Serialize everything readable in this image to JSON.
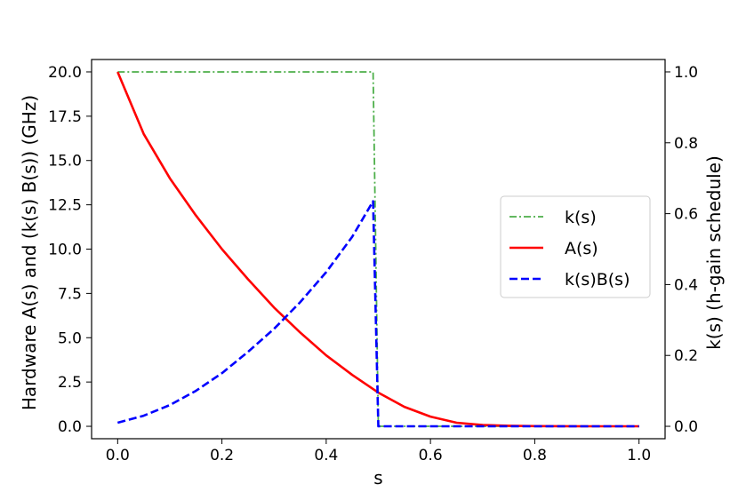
{
  "chart_data": {
    "type": "line",
    "title": "",
    "xlabel": "s",
    "ylabel_left": "Hardware A(s) and (k(s) B(s)) (GHz)",
    "ylabel_right": "k(s) (h-gain schedule)",
    "xlim": [
      -0.05,
      1.05
    ],
    "ylim_left": [
      -0.7,
      20.7
    ],
    "ylim_right": [
      -0.035,
      1.035
    ],
    "xticks": [
      "0.0",
      "0.2",
      "0.4",
      "0.6",
      "0.8",
      "1.0"
    ],
    "yticks_left": [
      "0.0",
      "2.5",
      "5.0",
      "7.5",
      "10.0",
      "12.5",
      "15.0",
      "17.5",
      "20.0"
    ],
    "yticks_right": [
      "0.0",
      "0.2",
      "0.4",
      "0.6",
      "0.8",
      "1.0"
    ],
    "grid": false,
    "legend_position": "center-right",
    "series": [
      {
        "name": "k(s)",
        "axis": "right",
        "color": "#4daf4a",
        "style": "dashdot",
        "x": [
          0.0,
          0.49,
          0.495,
          0.5,
          1.0
        ],
        "y": [
          1.0,
          1.0,
          0.5,
          0.0,
          0.0
        ]
      },
      {
        "name": "A(s)",
        "axis": "left",
        "color": "#ff0000",
        "style": "solid",
        "x": [
          0.0,
          0.05,
          0.1,
          0.15,
          0.2,
          0.25,
          0.3,
          0.35,
          0.4,
          0.45,
          0.5,
          0.55,
          0.6,
          0.65,
          0.7,
          0.75,
          0.8,
          0.9,
          1.0
        ],
        "y": [
          20.0,
          16.5,
          14.0,
          11.9,
          10.0,
          8.3,
          6.7,
          5.3,
          4.0,
          2.9,
          1.9,
          1.1,
          0.55,
          0.2,
          0.07,
          0.03,
          0.01,
          0.0,
          0.0
        ]
      },
      {
        "name": "k(s)B(s)",
        "axis": "left",
        "color": "#0000ff",
        "style": "dashed",
        "x": [
          0.0,
          0.05,
          0.1,
          0.15,
          0.2,
          0.25,
          0.3,
          0.35,
          0.4,
          0.45,
          0.49,
          0.5,
          1.0
        ],
        "y": [
          0.2,
          0.6,
          1.2,
          2.0,
          3.0,
          4.2,
          5.5,
          7.0,
          8.7,
          10.7,
          12.7,
          0.0,
          0.0
        ]
      }
    ]
  }
}
